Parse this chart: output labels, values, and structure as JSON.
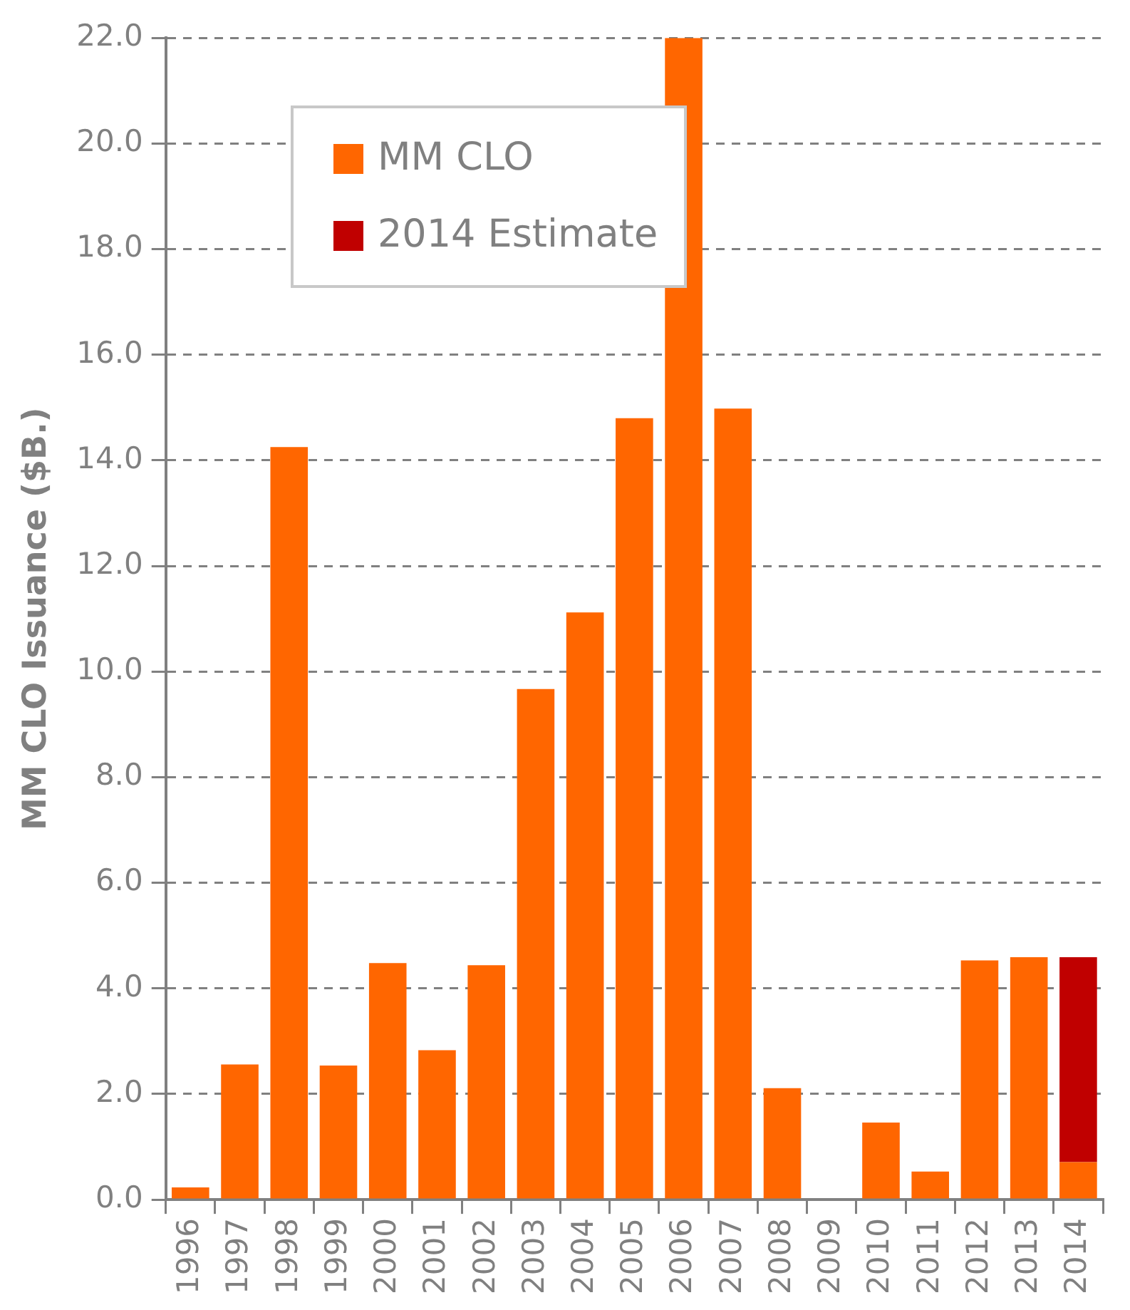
{
  "chart_data": {
    "type": "bar",
    "stacked": true,
    "ylabel": "MM CLO Issuance ($B.)",
    "categories": [
      "1996",
      "1997",
      "1998",
      "1999",
      "2000",
      "2001",
      "2002",
      "2003",
      "2004",
      "2005",
      "2006",
      "2007",
      "2008",
      "2009",
      "2010",
      "2011",
      "2012",
      "2013",
      "2014"
    ],
    "series": [
      {
        "name": "MM CLO",
        "color": "#ff6600",
        "values": [
          0.23,
          2.56,
          14.25,
          2.54,
          4.48,
          2.83,
          4.44,
          9.67,
          11.12,
          14.8,
          22.0,
          14.98,
          2.11,
          0,
          1.46,
          0.53,
          4.53,
          4.59,
          0.71
        ]
      },
      {
        "name": "2014 Estimate",
        "color": "#c00000",
        "values": [
          null,
          null,
          null,
          null,
          null,
          null,
          null,
          null,
          null,
          null,
          null,
          null,
          null,
          null,
          null,
          null,
          null,
          null,
          3.88
        ]
      }
    ],
    "ylim": [
      0,
      22
    ],
    "yticks": [
      {
        "value": 0,
        "label": "0.0"
      },
      {
        "value": 2,
        "label": "2.0"
      },
      {
        "value": 4,
        "label": "4.0"
      },
      {
        "value": 6,
        "label": "6.0"
      },
      {
        "value": 8,
        "label": "8.0"
      },
      {
        "value": 10,
        "label": "10.0"
      },
      {
        "value": 12,
        "label": "12.0"
      },
      {
        "value": 14,
        "label": "14.0"
      },
      {
        "value": 16,
        "label": "16.0"
      },
      {
        "value": 18,
        "label": "18.0"
      },
      {
        "value": 20,
        "label": "20.0"
      },
      {
        "value": 22,
        "label": "22.0"
      }
    ],
    "grid": "y",
    "legend": "top left"
  }
}
